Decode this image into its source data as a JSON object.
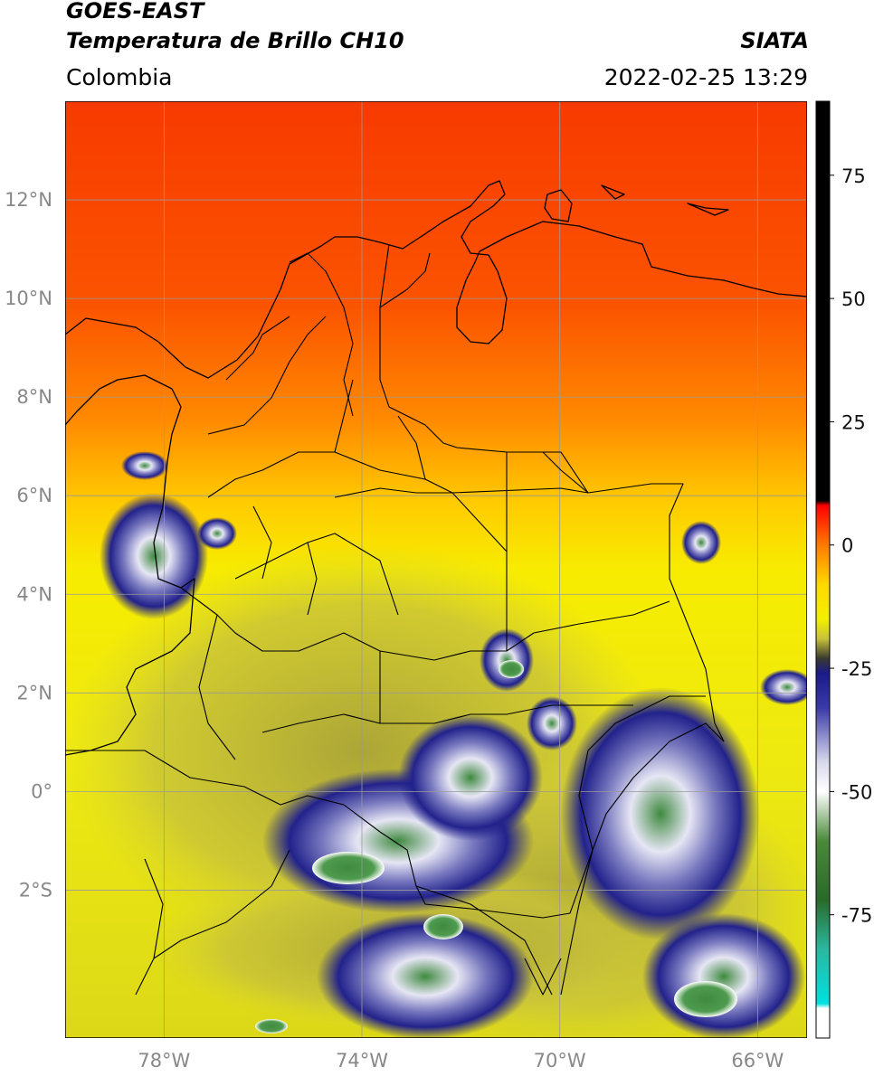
{
  "header": {
    "satellite": "GOES-EAST",
    "product": "Temperatura de Brillo CH10",
    "brand": "SIATA",
    "region": "Colombia",
    "timestamp": "2022-02-25 13:29"
  },
  "map": {
    "lon_range": [
      -80.0,
      -65.0
    ],
    "lat_range": [
      -5.0,
      14.0
    ],
    "lon_ticks": [
      {
        "value": -78,
        "label": "78°W"
      },
      {
        "value": -74,
        "label": "74°W"
      },
      {
        "value": -70,
        "label": "70°W"
      },
      {
        "value": -66,
        "label": "66°W"
      }
    ],
    "lat_ticks": [
      {
        "value": 12,
        "label": "12°N"
      },
      {
        "value": 10,
        "label": "10°N"
      },
      {
        "value": 8,
        "label": "8°N"
      },
      {
        "value": 6,
        "label": "6°N"
      },
      {
        "value": 4,
        "label": "4°N"
      },
      {
        "value": 2,
        "label": "2°N"
      },
      {
        "value": 0,
        "label": "0°"
      },
      {
        "value": -2,
        "label": "2°S"
      }
    ],
    "gridlines": true
  },
  "colorbar": {
    "range": [
      -100,
      90
    ],
    "ticks": [
      {
        "value": 75,
        "label": "75"
      },
      {
        "value": 50,
        "label": "50"
      },
      {
        "value": 25,
        "label": "25"
      },
      {
        "value": 0,
        "label": "0"
      },
      {
        "value": -25,
        "label": "-25"
      },
      {
        "value": -50,
        "label": "-50"
      },
      {
        "value": -75,
        "label": "-75"
      }
    ],
    "stops": [
      {
        "value": 90,
        "color": "#000000"
      },
      {
        "value": 9,
        "color": "#000000"
      },
      {
        "value": 8,
        "color": "#ff0000"
      },
      {
        "value": 0,
        "color": "#ff7a00"
      },
      {
        "value": -8,
        "color": "#ffd800"
      },
      {
        "value": -15,
        "color": "#f2f000"
      },
      {
        "value": -19,
        "color": "#c8c23a"
      },
      {
        "value": -23,
        "color": "#3a3a30"
      },
      {
        "value": -26,
        "color": "#1a1a88"
      },
      {
        "value": -33,
        "color": "#3a3aa8"
      },
      {
        "value": -44,
        "color": "#d8d8ec"
      },
      {
        "value": -50,
        "color": "#ffffff"
      },
      {
        "value": -60,
        "color": "#4a8a3a"
      },
      {
        "value": -72,
        "color": "#2a6a2a"
      },
      {
        "value": -82,
        "color": "#2ab8a0"
      },
      {
        "value": -93,
        "color": "#00e0e0"
      },
      {
        "value": -94,
        "color": "#ffffff"
      },
      {
        "value": -100,
        "color": "#ffffff"
      }
    ]
  },
  "colors": {
    "hot_red": "#fa3c00",
    "orange": "#ff7a00",
    "yellow": "#f4ee00",
    "olive": "#c8c23a",
    "cloud_navy": "#22228c",
    "cloud_white": "#e8e8f6",
    "cloud_green": "#3f8a3f",
    "borders": "#000000",
    "gridline": "#9a9a9a"
  }
}
